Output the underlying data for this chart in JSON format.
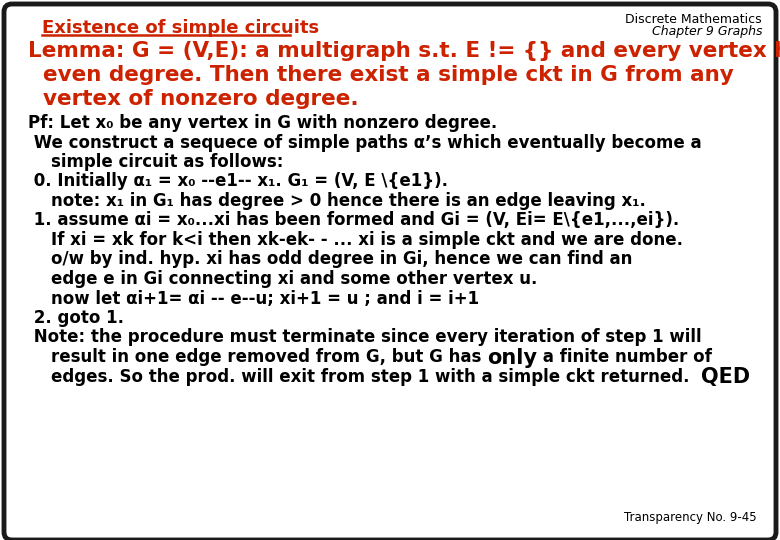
{
  "bg_color": "#ffffff",
  "border_color": "#1a1a1a",
  "header_color": "#000000",
  "title_color": "#cc2200",
  "lemma_color": "#cc2200",
  "body_color": "#000000",
  "transparency_label": "Transparency No. 9-45",
  "top_right_line1": "Discrete Mathematics",
  "top_right_line2": "Chapter 9 Graphs",
  "title": "Existence of simple circuits",
  "lemma_lines": [
    "Lemma: G = (V,E): a multigraph s.t. E != {} and every vertex has",
    "  even degree. Then there exist a simple ckt in G from any",
    "  vertex of nonzero degree."
  ],
  "body_lines": [
    {
      "text": "Pf: Let x₀ be any vertex in G with nonzero degree.",
      "size": "normal"
    },
    {
      "text": " We construct a sequece of simple paths α’s which eventually become a",
      "size": "normal"
    },
    {
      "text": "    simple circuit as follows:",
      "size": "normal"
    },
    {
      "text": " 0. Initially α₁ = x₀ --e1-- x₁. G₁ = (V, E \\{e1}).",
      "size": "normal"
    },
    {
      "text": "    note: x₁ in G₁ has degree > 0 hence there is an edge leaving x₁.",
      "size": "normal"
    },
    {
      "text": " 1. assume αi = x₀...xi has been formed and Gi = (V, Ei= E\\{e1,...,ei}).",
      "size": "normal"
    },
    {
      "text": "    If xi = xk for k<i then xk-ek- - ... xi is a simple ckt and we are done.",
      "size": "normal"
    },
    {
      "text": "    o/w by ind. hyp. xi has odd degree in Gi, hence we can find an",
      "size": "normal"
    },
    {
      "text": "    edge e in Gi connecting xi and some other vertex u.",
      "size": "normal"
    },
    {
      "text": "    now let αi+1= αi -- e--u; xi+1 = u ; and i = i+1",
      "size": "normal"
    },
    {
      "text": " 2. goto 1.",
      "size": "normal"
    },
    {
      "text": " Note: the procedure must terminate since every iteration of step 1 will",
      "size": "normal"
    },
    {
      "text": "    result in one edge removed from G, but G has ",
      "size": "normal",
      "suffix": "only",
      "suffix_size": "large",
      "suffix2": " a finite number of",
      "suffix2_size": "normal"
    },
    {
      "text": "    edges. So the prod. will exit from step 1 with a simple ckt returned.  ",
      "size": "normal",
      "suffix": "QED",
      "suffix_size": "large"
    }
  ]
}
